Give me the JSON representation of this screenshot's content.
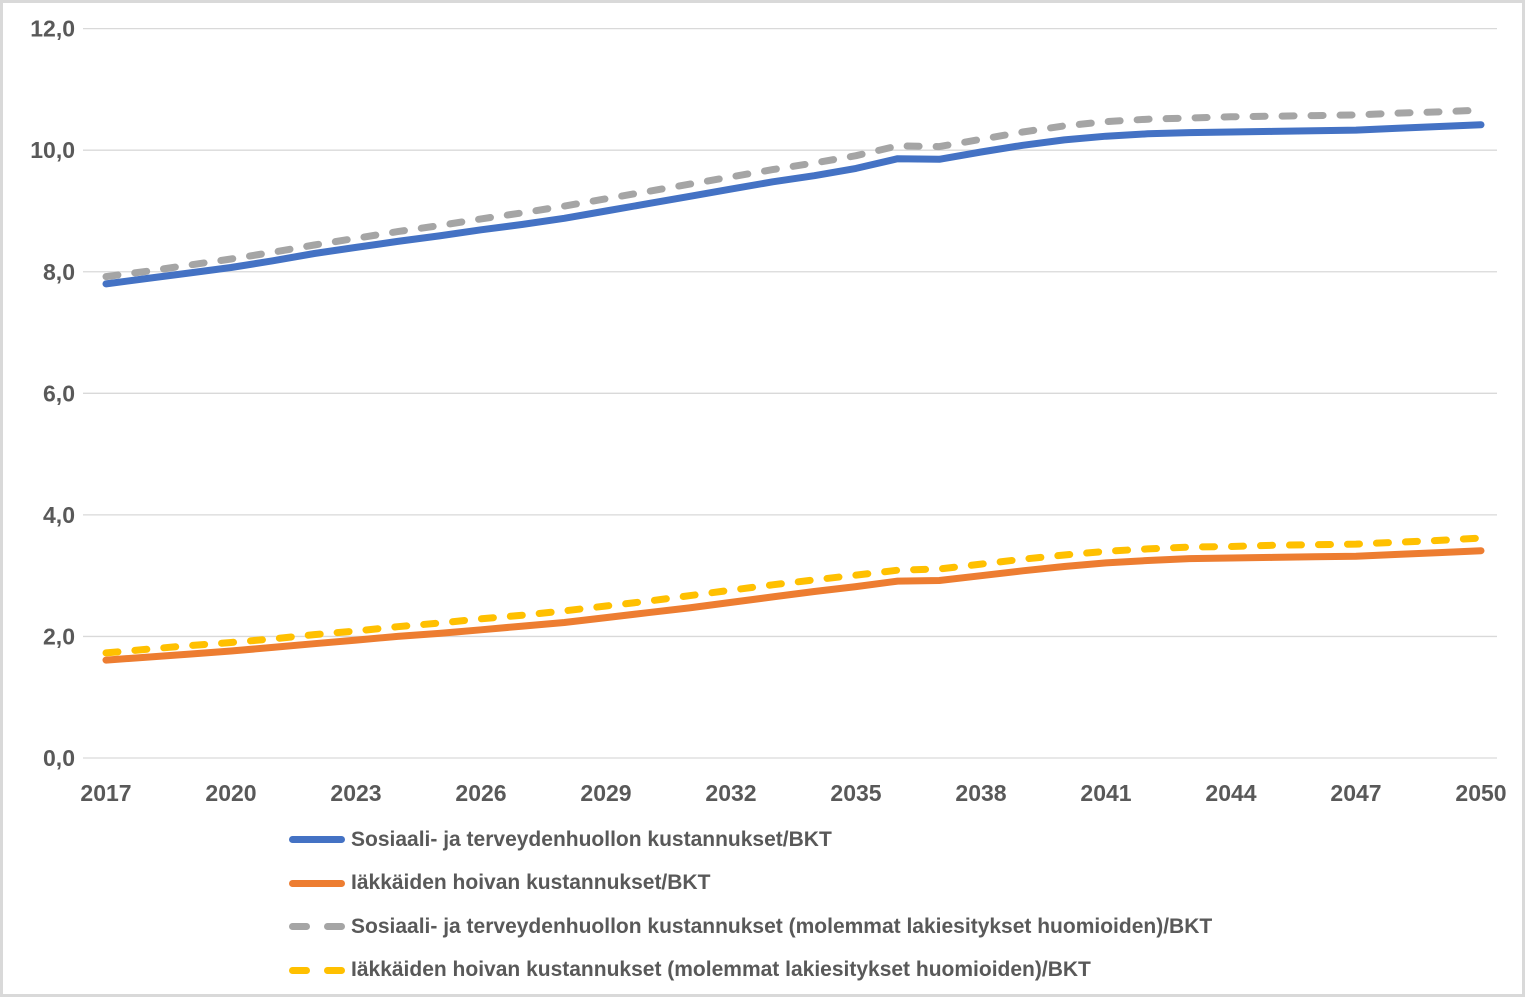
{
  "colors": {
    "background": "#FFFFFF",
    "frame_border": "#D9D9D9",
    "gridline": "#D9D9D9",
    "axis_text": "#595959",
    "legend_text": "#595959"
  },
  "chart_data": {
    "type": "line",
    "title": "",
    "xlabel": "",
    "ylabel": "",
    "grid": true,
    "legend_position": "bottom-left",
    "ylim": [
      0,
      12
    ],
    "y_ticks": [
      0,
      2,
      4,
      6,
      8,
      10,
      12
    ],
    "y_tick_labels": [
      "0,0",
      "2,0",
      "4,0",
      "6,0",
      "8,0",
      "10,0",
      "12,0"
    ],
    "x": [
      2017,
      2018,
      2019,
      2020,
      2021,
      2022,
      2023,
      2024,
      2025,
      2026,
      2027,
      2028,
      2029,
      2030,
      2031,
      2032,
      2033,
      2034,
      2035,
      2036,
      2037,
      2038,
      2039,
      2040,
      2041,
      2042,
      2043,
      2044,
      2045,
      2046,
      2047,
      2048,
      2049,
      2050
    ],
    "x_tick_labels": [
      "2017",
      "2020",
      "2023",
      "2026",
      "2029",
      "2032",
      "2035",
      "2038",
      "2041",
      "2044",
      "2047",
      "2050"
    ],
    "series": [
      {
        "name": "Sosiaali- ja terveydenhuollon kustannukset/BKT",
        "color": "#4472C4",
        "style": "solid",
        "values": [
          7.8,
          7.89,
          7.98,
          8.07,
          8.18,
          8.3,
          8.4,
          8.5,
          8.59,
          8.69,
          8.78,
          8.88,
          9.0,
          9.12,
          9.24,
          9.36,
          9.48,
          9.58,
          9.7,
          9.86,
          9.85,
          9.97,
          10.08,
          10.17,
          10.23,
          10.27,
          10.29,
          10.3,
          10.31,
          10.32,
          10.33,
          10.36,
          10.39,
          10.42
        ]
      },
      {
        "name": "Iäkkäiden hoivan kustannukset/BKT",
        "color": "#ED7D31",
        "style": "solid",
        "values": [
          1.61,
          1.66,
          1.71,
          1.76,
          1.82,
          1.88,
          1.94,
          2.0,
          2.05,
          2.11,
          2.17,
          2.23,
          2.31,
          2.39,
          2.47,
          2.56,
          2.65,
          2.74,
          2.82,
          2.91,
          2.92,
          3.0,
          3.08,
          3.15,
          3.21,
          3.25,
          3.28,
          3.29,
          3.3,
          3.31,
          3.32,
          3.35,
          3.38,
          3.41
        ]
      },
      {
        "name": "Sosiaali- ja terveydenhuollon kustannukset (molemmat lakiesitykset huomioiden)/BKT",
        "color": "#A5A5A5",
        "style": "dashed",
        "values": [
          7.92,
          8.01,
          8.11,
          8.21,
          8.32,
          8.44,
          8.55,
          8.66,
          8.76,
          8.87,
          8.97,
          9.08,
          9.2,
          9.32,
          9.44,
          9.56,
          9.68,
          9.79,
          9.91,
          10.07,
          10.06,
          10.18,
          10.3,
          10.4,
          10.47,
          10.51,
          10.53,
          10.55,
          10.56,
          10.57,
          10.58,
          10.61,
          10.63,
          10.66
        ]
      },
      {
        "name": "Iäkkäiden hoivan kustannukset (molemmat lakiesitykset huomioiden)/BKT",
        "color": "#FFC000",
        "style": "dashed",
        "values": [
          1.73,
          1.79,
          1.85,
          1.9,
          1.96,
          2.03,
          2.09,
          2.16,
          2.22,
          2.29,
          2.35,
          2.42,
          2.5,
          2.58,
          2.67,
          2.76,
          2.85,
          2.93,
          3.01,
          3.09,
          3.11,
          3.19,
          3.27,
          3.34,
          3.4,
          3.44,
          3.47,
          3.48,
          3.5,
          3.51,
          3.52,
          3.55,
          3.58,
          3.62
        ]
      }
    ]
  }
}
